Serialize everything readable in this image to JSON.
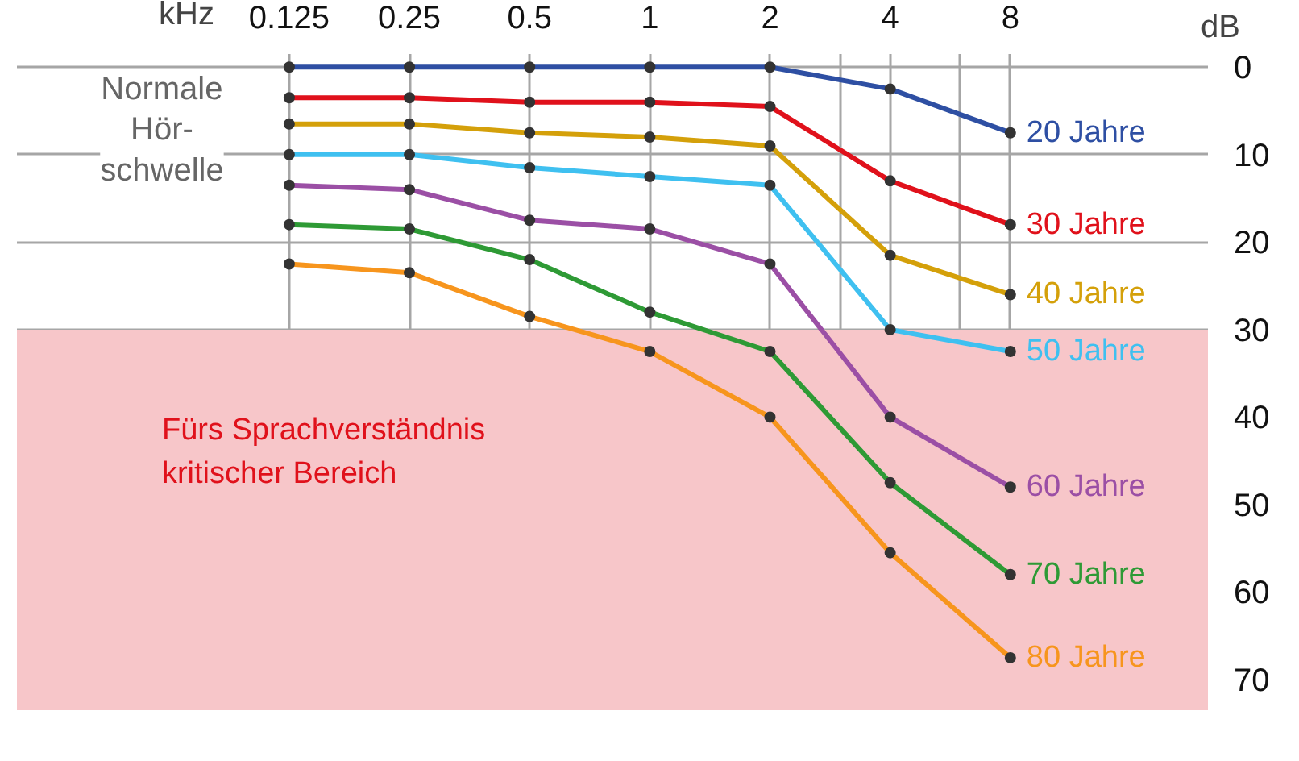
{
  "chart_data": {
    "type": "line",
    "xlabel": "kHz",
    "ylabel": "dB",
    "x": [
      0.125,
      0.25,
      0.5,
      1,
      2,
      4,
      8
    ],
    "series": [
      {
        "name": "20 Jahre",
        "color": "#2e4fa3",
        "values": [
          0,
          0,
          0,
          0,
          0,
          2.5,
          7.5
        ]
      },
      {
        "name": "30 Jahre",
        "color": "#e0111b",
        "values": [
          3.5,
          3.5,
          4,
          4,
          4.5,
          13,
          18
        ]
      },
      {
        "name": "40 Jahre",
        "color": "#d4a00a",
        "values": [
          6.5,
          6.5,
          7.5,
          8,
          9,
          21.5,
          26
        ]
      },
      {
        "name": "50 Jahre",
        "color": "#3fc0f0",
        "values": [
          10,
          10,
          11.5,
          12.5,
          13.5,
          30,
          32.5
        ]
      },
      {
        "name": "60 Jahre",
        "color": "#9b4fa5",
        "values": [
          13.5,
          14,
          17.5,
          18.5,
          22.5,
          40,
          48
        ]
      },
      {
        "name": "70 Jahre",
        "color": "#2e9a35",
        "values": [
          18,
          18.5,
          22,
          28,
          32.5,
          47.5,
          58
        ]
      },
      {
        "name": "80 Jahre",
        "color": "#f7951d",
        "values": [
          22.5,
          23.5,
          28.5,
          32.5,
          40,
          55.5,
          67.5
        ]
      }
    ],
    "log": "x",
    "xlim": [
      0.026,
      25
    ],
    "ylim": [
      73.5,
      -1.5
    ],
    "xticks": [
      0.125,
      0.25,
      0.5,
      1,
      2,
      {
        "value": 3,
        "label": null
      },
      4,
      {
        "value": 6,
        "label": null
      },
      8
    ],
    "yticks": [
      0,
      10,
      20,
      30,
      40,
      50,
      60,
      70
    ],
    "grid": true,
    "marker": "circle",
    "line_style": "solid",
    "bands": [
      {
        "axis": "y",
        "from": 30,
        "to": 73.5,
        "label": "Fürs Sprachverständnis\nkritischer Bereich",
        "color": "#f7c6c9"
      }
    ],
    "annotations": [
      "Normale\nHör-\nschwelle"
    ]
  }
}
